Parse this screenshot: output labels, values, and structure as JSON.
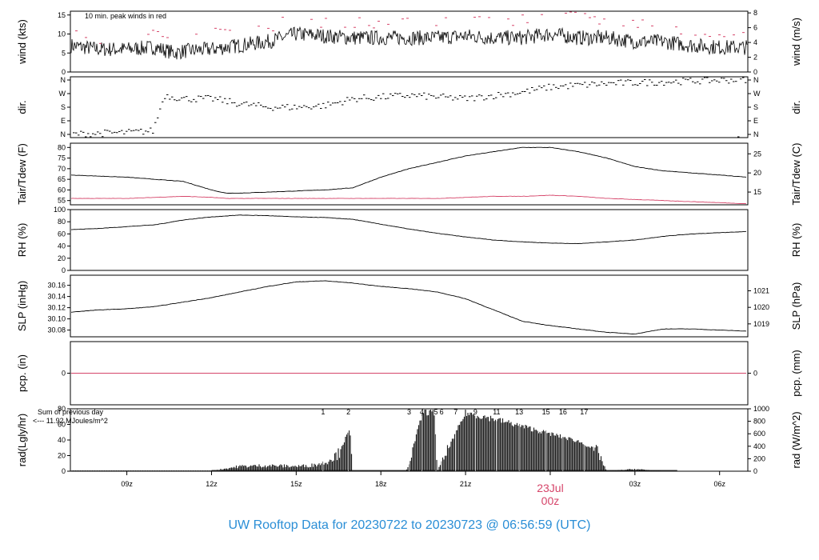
{
  "footer": {
    "prefix": "UW Rooftop Data for",
    "start": "20230722",
    "to": "to",
    "end": "20230723 @ 06:56:59",
    "tz": "(UTC)"
  },
  "date_marker": {
    "date": "23Jul",
    "hour": "00z",
    "color": "#d6456a"
  },
  "colors": {
    "line": "#000000",
    "red": "#d6456a",
    "purple": "#9b30d9",
    "footer": "#2a8ed6"
  },
  "chart_data": [
    {
      "type": "line",
      "id": "wind",
      "ylabel": "wind (kts)",
      "ylabel_right": "wind (m/s)",
      "ylim": [
        0,
        16
      ],
      "yticks": [
        0,
        5,
        10,
        15
      ],
      "yticks_right": [
        "0",
        "2",
        "4",
        "6",
        "8"
      ],
      "annotation": "10 min. peak winds in red",
      "x": [
        7,
        8,
        9,
        10,
        10.7,
        11,
        12,
        13,
        14,
        15,
        16,
        17,
        18,
        19,
        20,
        21,
        22,
        23,
        24,
        25,
        26,
        27,
        28,
        29,
        30,
        31
      ],
      "series": [
        {
          "values": [
            7,
            6,
            6,
            6.5,
            5,
            5.5,
            6,
            7,
            8,
            10,
            9.5,
            9,
            9,
            9,
            9,
            9.5,
            9,
            9,
            10,
            9,
            9,
            8,
            8,
            7,
            6.5,
            6.5
          ]
        },
        {
          "values": [
            10,
            9,
            9,
            10,
            9,
            9,
            10,
            11,
            12,
            14,
            13,
            13,
            13,
            13,
            13,
            14,
            13,
            14,
            15,
            15,
            13,
            13,
            12,
            11,
            10,
            10
          ],
          "style": "dashes"
        }
      ]
    },
    {
      "type": "scatter",
      "id": "dir",
      "ylabel": "dir.",
      "ylabel_right": "dir.",
      "ylim": [
        0,
        360
      ],
      "yticks": [
        "N",
        "E",
        "S",
        "W",
        "N"
      ],
      "x": [
        7,
        8,
        9,
        9.9,
        10.3,
        11,
        12,
        13,
        14,
        15,
        16,
        17,
        18,
        19,
        20,
        21,
        22,
        23,
        24,
        25,
        26,
        27,
        28,
        29,
        30,
        31
      ],
      "values": [
        20,
        25,
        30,
        40,
        250,
        230,
        230,
        200,
        180,
        180,
        190,
        230,
        240,
        250,
        240,
        230,
        250,
        270,
        300,
        310,
        320,
        325,
        330,
        335,
        340,
        345
      ]
    },
    {
      "type": "line",
      "id": "temp",
      "ylabel": "Tair/Tdew (F)",
      "ylabel_right": "Tair/Tdew (C)",
      "ylim": [
        53,
        82
      ],
      "yticks": [
        55,
        60,
        65,
        70,
        75,
        80
      ],
      "yticks_right": [
        "15",
        "20",
        "25"
      ],
      "x": [
        7,
        8,
        9,
        10,
        11,
        12,
        12.5,
        13,
        14,
        15,
        16,
        17,
        18,
        19,
        20,
        21,
        22,
        23,
        24,
        25,
        26,
        27,
        28,
        29,
        30,
        31
      ],
      "series": [
        {
          "name": "Tair",
          "values": [
            67,
            66.5,
            66,
            65,
            64,
            60,
            58.5,
            58.5,
            59,
            59.5,
            60,
            61,
            66,
            70,
            73,
            76,
            78,
            80,
            80,
            78,
            75,
            71,
            69,
            68,
            67,
            66
          ]
        },
        {
          "name": "Tdew",
          "values": [
            56,
            56,
            56,
            56.5,
            57,
            56.5,
            56,
            56,
            56,
            56,
            56,
            56,
            56,
            56,
            56,
            56.5,
            57,
            57,
            57.5,
            57,
            56,
            55.5,
            55,
            54.5,
            54,
            53.5
          ]
        }
      ]
    },
    {
      "type": "line",
      "id": "rh",
      "ylabel": "RH (%)",
      "ylabel_right": "RH (%)",
      "ylim": [
        0,
        100
      ],
      "yticks": [
        0,
        20,
        40,
        60,
        80,
        100
      ],
      "x": [
        7,
        8,
        9,
        10,
        11,
        12,
        13,
        14,
        15,
        16,
        17,
        18,
        19,
        20,
        21,
        22,
        23,
        24,
        25,
        26,
        27,
        28,
        29,
        30,
        31
      ],
      "series": [
        {
          "values": [
            67,
            69,
            72,
            75,
            83,
            88,
            91,
            90,
            88,
            87,
            84,
            76,
            68,
            61,
            55,
            50,
            47,
            45,
            44,
            47,
            50,
            56,
            60,
            62,
            64
          ]
        }
      ]
    },
    {
      "type": "line",
      "id": "slp",
      "ylabel": "SLP (inHg)",
      "ylabel_right": "SLP (hPa)",
      "ylim": [
        30.068,
        30.178
      ],
      "yticks": [
        30.08,
        30.1,
        30.12,
        30.14,
        30.16
      ],
      "yticks_right": [
        "1019",
        "1020",
        "1021"
      ],
      "x": [
        7,
        8,
        9,
        10,
        11,
        12,
        13,
        14,
        15,
        16,
        17,
        18,
        19,
        20,
        21,
        22,
        23,
        24,
        25,
        26,
        27,
        28,
        29,
        30,
        31
      ],
      "series": [
        {
          "values": [
            30.112,
            30.116,
            30.118,
            30.122,
            30.13,
            30.138,
            30.148,
            30.158,
            30.166,
            30.168,
            30.164,
            30.158,
            30.154,
            30.148,
            30.136,
            30.116,
            30.096,
            30.088,
            30.082,
            30.076,
            30.073,
            30.082,
            30.082,
            30.08,
            30.078
          ]
        }
      ]
    },
    {
      "type": "line",
      "id": "pcp",
      "ylabel": "pcp. (in)",
      "ylabel_right": "pcp. (mm)",
      "ylim": [
        -1,
        1
      ],
      "yticks": [
        0
      ],
      "yticks_right": [
        "0"
      ],
      "x": [
        7,
        31
      ],
      "series": [
        {
          "values": [
            0,
            0
          ]
        }
      ]
    },
    {
      "type": "bar",
      "id": "rad",
      "ylabel": "rad(Lgly/hr)",
      "ylabel_right": "rad (W/m^2)",
      "ylim": [
        0,
        80
      ],
      "yticks": [
        0,
        20,
        40,
        60,
        80
      ],
      "yticks_right": [
        "0",
        "200",
        "400",
        "600",
        "800",
        "1000"
      ],
      "sum_label": "Sum of previous day",
      "sum_value": "<--- 11.92 MJoules/m^2",
      "hour_labels": [
        "1",
        "2",
        "3",
        "4",
        "5",
        "6",
        "7",
        "9",
        "11",
        "13",
        "15",
        "16",
        "17"
      ],
      "hour_x": [
        15.95,
        16.85,
        19.0,
        19.45,
        19.95,
        20.15,
        20.65,
        21.35,
        22.1,
        22.9,
        23.85,
        24.45,
        25.2
      ],
      "x": [
        12,
        13,
        14,
        15,
        15.5,
        16,
        16.5,
        16.9,
        17.0,
        18.9,
        19.5,
        19.9,
        20.0,
        21,
        22,
        23,
        24,
        25,
        25.7,
        26.0,
        27,
        28,
        30
      ],
      "values": [
        0.5,
        7,
        8,
        7,
        8,
        12,
        25,
        55,
        0,
        0,
        80,
        78,
        0,
        78,
        70,
        60,
        50,
        40,
        27,
        0,
        3,
        0,
        0
      ]
    }
  ],
  "xaxis": {
    "ticks": [
      9,
      12,
      15,
      18,
      21,
      27,
      30
    ],
    "labels": [
      "09z",
      "12z",
      "15z",
      "18z",
      "21z",
      "03z",
      "06z"
    ],
    "range": [
      7,
      31
    ]
  }
}
